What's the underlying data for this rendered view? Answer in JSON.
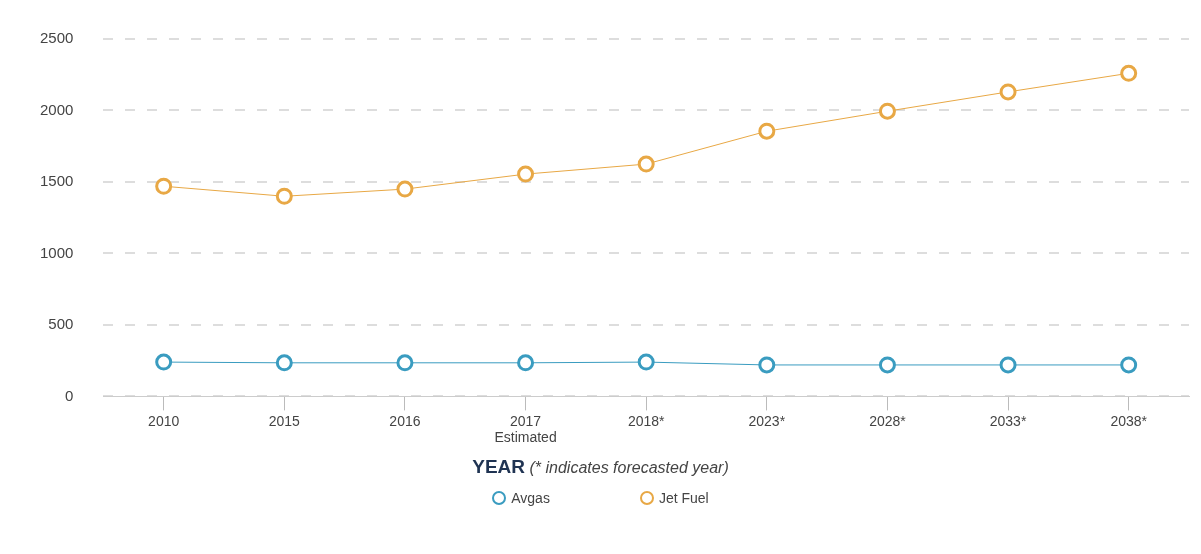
{
  "chart_data": {
    "type": "line",
    "xlabel": "YEAR (* indicates forecasted year)",
    "categories": [
      "2010",
      "2015",
      "2016",
      "2017\nEstimated",
      "2018*",
      "2023*",
      "2028*",
      "2033*",
      "2038*"
    ],
    "series": [
      {
        "name": "Avgas",
        "color": "#3a9cc0",
        "values": [
          240,
          235,
          235,
          235,
          240,
          220,
          220,
          220,
          220
        ]
      },
      {
        "name": "Jet Fuel",
        "color": "#e8a845",
        "values": [
          1470,
          1400,
          1450,
          1555,
          1625,
          1855,
          1995,
          2130,
          2260
        ]
      }
    ],
    "ylim": [
      0,
      2500
    ],
    "yticks": [
      0,
      500,
      1000,
      1500,
      2000,
      2500
    ],
    "grid": "y",
    "legend": "bottom",
    "marker": "circle",
    "line_style": "solid"
  }
}
